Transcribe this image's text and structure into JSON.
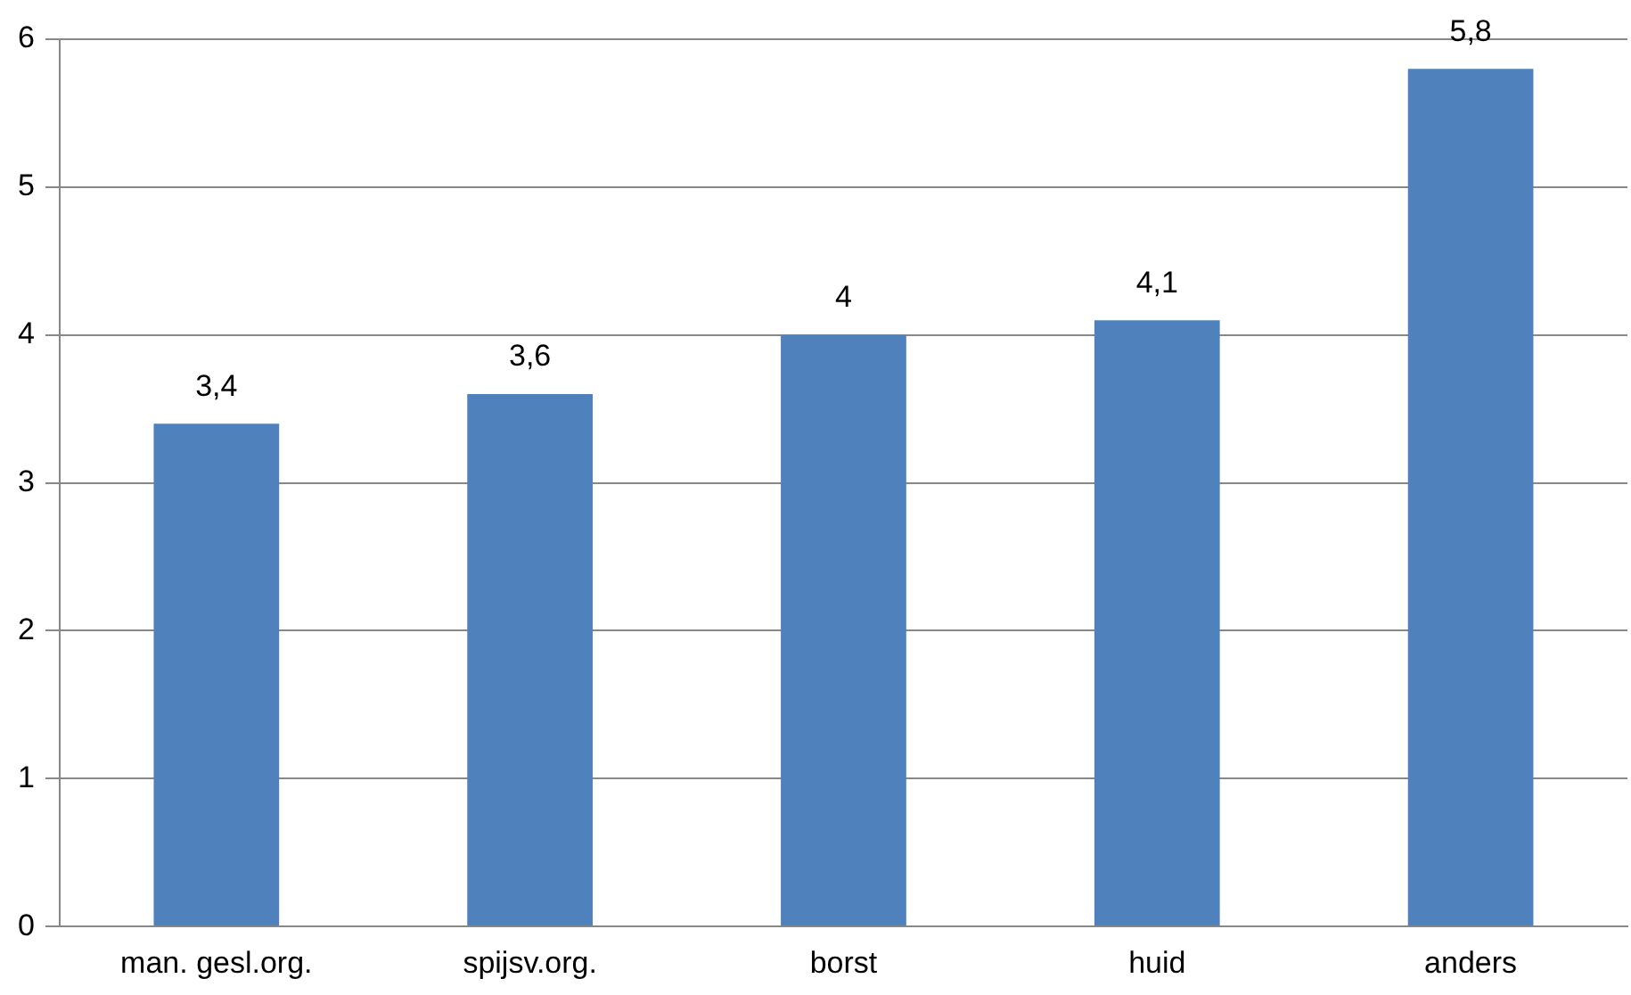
{
  "chart_data": {
    "type": "bar",
    "categories": [
      "man. gesl.org.",
      "spijsv.org.",
      "borst",
      "huid",
      "anders"
    ],
    "values": [
      3.4,
      3.6,
      4,
      4.1,
      5.8
    ],
    "value_labels": [
      "3,4",
      "3,6",
      "4",
      "4,1",
      "5,8"
    ],
    "color": "#4f81bd",
    "ylim": [
      0,
      6
    ],
    "yticks": [
      0,
      1,
      2,
      3,
      4,
      5,
      6
    ],
    "grid": "y",
    "legend": false
  }
}
